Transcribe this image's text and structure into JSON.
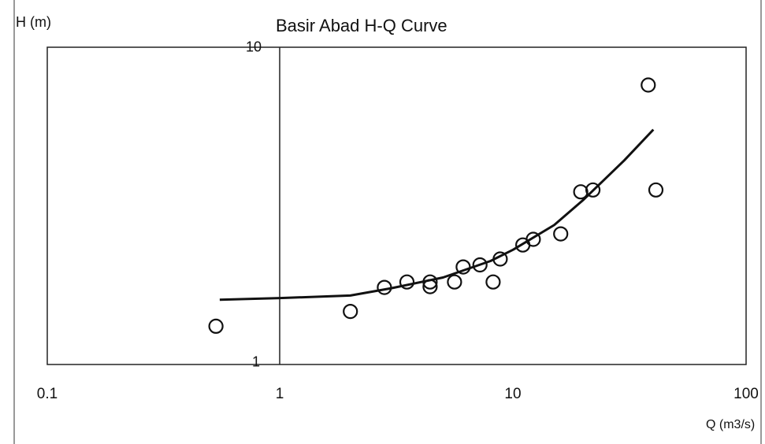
{
  "chart_data": {
    "type": "scatter",
    "title": "Basir Abad H-Q Curve",
    "xlabel": "Q (m3/s)",
    "ylabel": "H (m)",
    "xscale": "log",
    "yscale": "log",
    "xlim": [
      0.1,
      100
    ],
    "ylim": [
      1,
      10
    ],
    "xticks": [
      "0.1",
      "1",
      "10",
      "100"
    ],
    "yticks": [
      "1",
      "10"
    ],
    "grid": false,
    "legend": "none",
    "series": [
      {
        "kind": "points",
        "marker": "open-circle",
        "x": [
          0.53,
          2.0,
          2.8,
          3.5,
          4.4,
          4.4,
          5.6,
          6.1,
          7.2,
          8.2,
          8.8,
          11.0,
          12.2,
          16.0,
          19.5,
          22.0,
          38.0,
          41.0
        ],
        "y": [
          1.32,
          1.47,
          1.75,
          1.82,
          1.76,
          1.82,
          1.82,
          2.03,
          2.06,
          1.82,
          2.15,
          2.38,
          2.48,
          2.58,
          3.5,
          3.55,
          7.6,
          3.55
        ]
      },
      {
        "kind": "fitted-curve",
        "x": [
          0.55,
          1.0,
          2.0,
          3.0,
          5.0,
          8.0,
          10.0,
          15.0,
          20.0,
          30.0,
          40.0
        ],
        "y": [
          1.6,
          1.62,
          1.65,
          1.74,
          1.88,
          2.12,
          2.3,
          2.75,
          3.3,
          4.4,
          5.5
        ]
      }
    ]
  },
  "colors": {
    "ink": "#111111",
    "background": "#ffffff"
  }
}
